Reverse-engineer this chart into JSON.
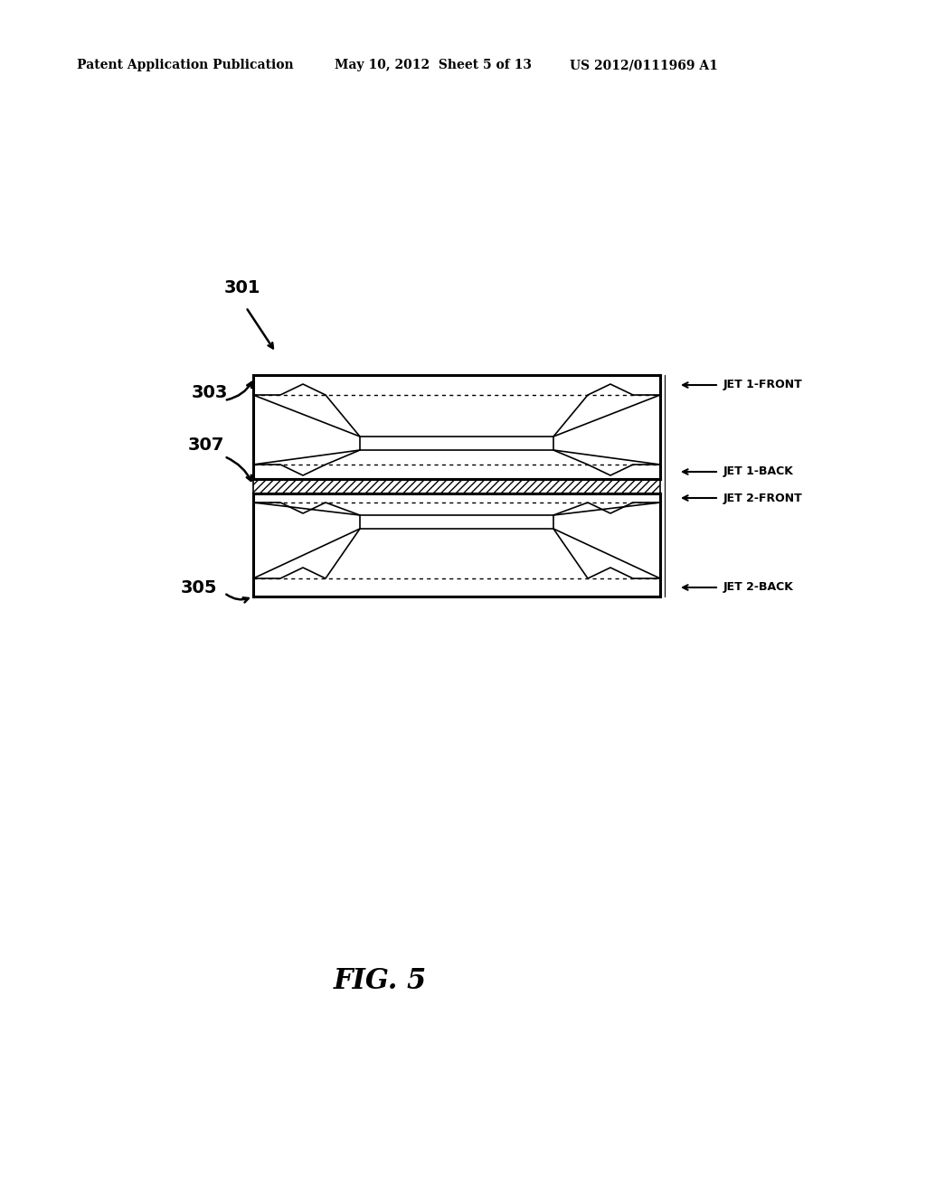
{
  "header_left": "Patent Application Publication",
  "header_mid": "May 10, 2012  Sheet 5 of 13",
  "header_right": "US 2012/0111969 A1",
  "fig_label": "FIG. 5",
  "label_301": "301",
  "label_303": "303",
  "label_305": "305",
  "label_307": "307",
  "jet_labels": [
    "JET 1-FRONT",
    "JET 1-BACK",
    "JET 2-FRONT",
    "JET 2-BACK"
  ],
  "bg_color": "#ffffff",
  "line_color": "#000000"
}
